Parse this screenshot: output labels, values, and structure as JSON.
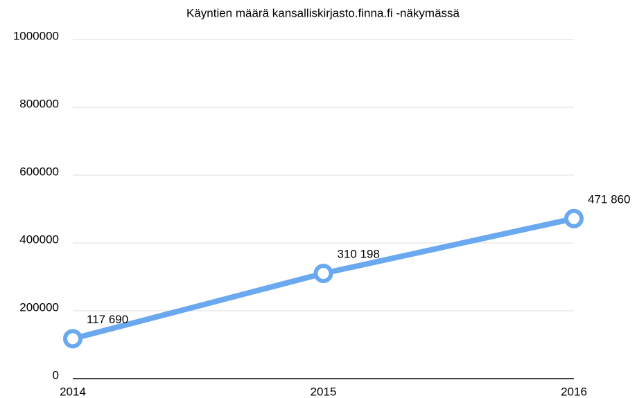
{
  "chart_data": {
    "type": "line",
    "title": "Käyntien määrä kansalliskirjasto.finna.fi -näkymässä",
    "categories": [
      "2014",
      "2015",
      "2016"
    ],
    "values": [
      117690,
      310198,
      471860
    ],
    "value_labels": [
      "117 690",
      "310 198",
      "471 860"
    ],
    "color": "#6aa8f0",
    "ylim": [
      0,
      1000000
    ],
    "yticks": [
      0,
      200000,
      400000,
      600000,
      800000,
      1000000
    ],
    "grid": true
  }
}
